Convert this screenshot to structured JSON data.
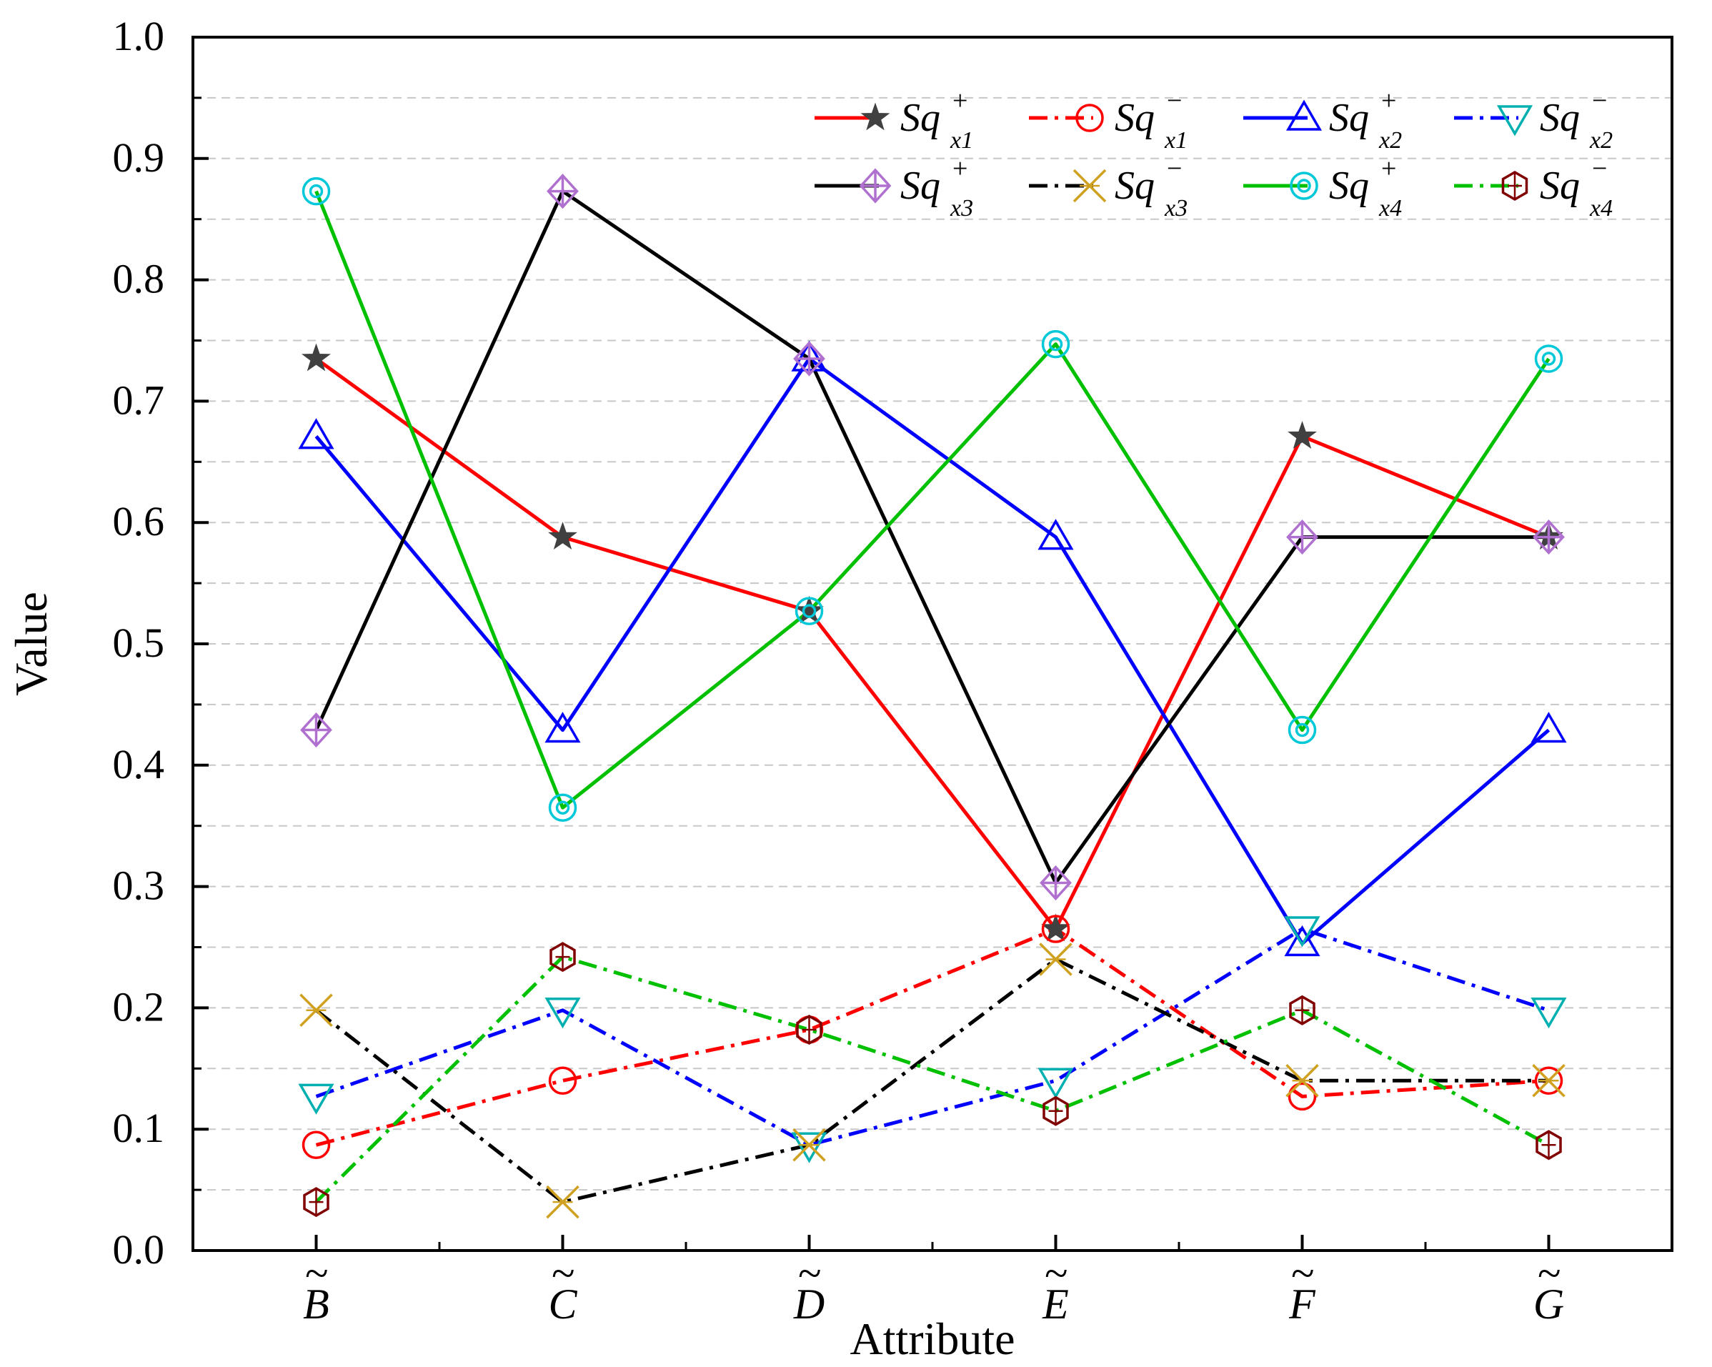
{
  "chart_data": {
    "type": "line",
    "title": "",
    "xlabel": "Attribute",
    "ylabel": "Value",
    "categories": [
      "B",
      "C",
      "D",
      "E",
      "F",
      "G"
    ],
    "category_accent": "~",
    "ylim": [
      0,
      1
    ],
    "yticks": [
      "0.0",
      "0.1",
      "0.2",
      "0.3",
      "0.4",
      "0.5",
      "0.6",
      "0.7",
      "0.8",
      "0.9",
      "1.0"
    ],
    "grid": "dashed horizontal at 0.05 steps",
    "legend_position": "top-right",
    "series": [
      {
        "name": "Sq+x1",
        "base": "Sq",
        "sup": "+",
        "sub": "x1",
        "color": "#ff0000",
        "dash": "solid",
        "marker": "star",
        "marker_color": "#404040",
        "values": [
          0.735,
          0.588,
          0.527,
          0.265,
          0.671,
          0.588
        ]
      },
      {
        "name": "Sq-x1",
        "base": "Sq",
        "sup": "−",
        "sub": "x1",
        "color": "#ff0000",
        "dash": "dashdot",
        "marker": "circle",
        "marker_color": "#ff0000",
        "values": [
          0.087,
          0.14,
          0.182,
          0.265,
          0.127,
          0.14
        ]
      },
      {
        "name": "Sq+x2",
        "base": "Sq",
        "sup": "+",
        "sub": "x2",
        "color": "#0000ff",
        "dash": "solid",
        "marker": "triangle-up",
        "marker_color": "#0000ff",
        "values": [
          0.671,
          0.429,
          0.735,
          0.588,
          0.253,
          0.429
        ]
      },
      {
        "name": "Sq-x2",
        "base": "Sq",
        "sup": "−",
        "sub": "x2",
        "color": "#0000ff",
        "dash": "dashdot",
        "marker": "triangle-down",
        "marker_color": "#00b0b0",
        "values": [
          0.127,
          0.198,
          0.087,
          0.14,
          0.265,
          0.198
        ]
      },
      {
        "name": "Sq+x3",
        "base": "Sq",
        "sup": "+",
        "sub": "x3",
        "color": "#000000",
        "dash": "solid",
        "marker": "diamond-plus",
        "marker_color": "#b070d0",
        "values": [
          0.429,
          0.873,
          0.735,
          0.303,
          0.588,
          0.588
        ]
      },
      {
        "name": "Sq-x3",
        "base": "Sq",
        "sup": "−",
        "sub": "x3",
        "color": "#000000",
        "dash": "dashdot",
        "marker": "cross-x",
        "marker_color": "#d0a020",
        "values": [
          0.198,
          0.04,
          0.087,
          0.24,
          0.14,
          0.14
        ]
      },
      {
        "name": "Sq+x4",
        "base": "Sq",
        "sup": "+",
        "sub": "x4",
        "color": "#00c000",
        "dash": "solid",
        "marker": "circle-dot",
        "marker_color": "#00c8d8",
        "values": [
          0.873,
          0.365,
          0.527,
          0.747,
          0.429,
          0.735
        ]
      },
      {
        "name": "Sq-x4",
        "base": "Sq",
        "sup": "−",
        "sub": "x4",
        "color": "#00c000",
        "dash": "dashdot",
        "marker": "hexagon-plus",
        "marker_color": "#800000",
        "values": [
          0.04,
          0.242,
          0.182,
          0.115,
          0.198,
          0.087
        ]
      }
    ]
  }
}
